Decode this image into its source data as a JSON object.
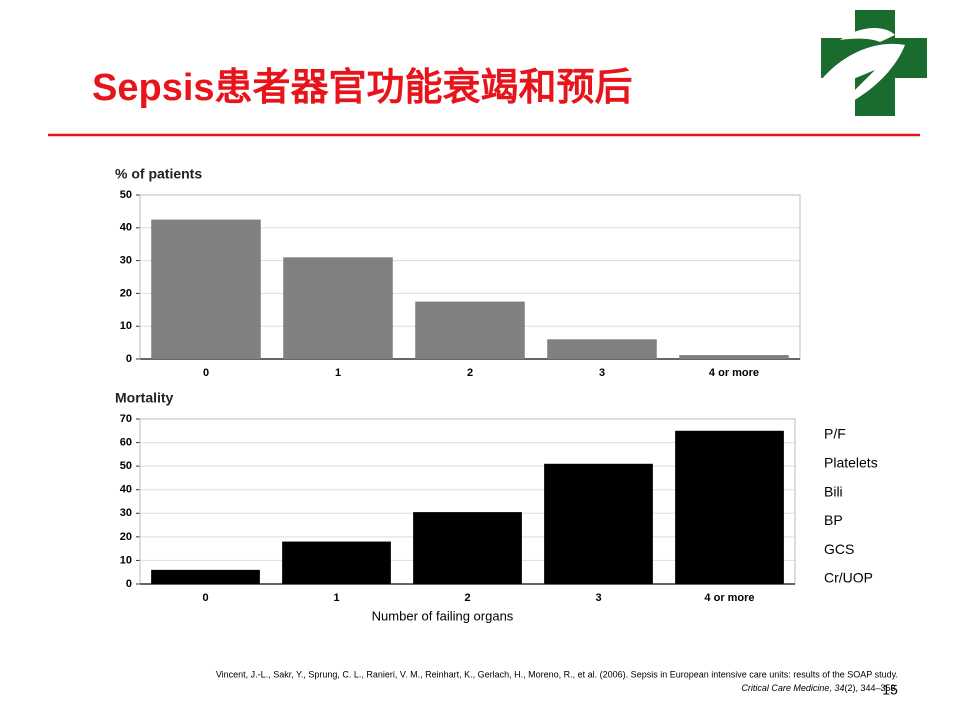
{
  "slide": {
    "title": "Sepsis患者器官功能衰竭和预后",
    "side_list": [
      "P/F",
      "Platelets",
      "Bili",
      "BP",
      "GCS",
      "Cr/UOP"
    ],
    "citation": [
      "Vincent, J.-L., Sakr, Y., Sprung, C. L., Ranieri, V. M., Reinhart, K., Gerlach, H., Moreno, R., et al. (2006). Sepsis in European intensive care units: results of the SOAP study.",
      "Critical Care Medicine, 34",
      "(2), 344–353."
    ],
    "page_number": "15"
  },
  "chart_data": [
    {
      "type": "bar",
      "title": "% of patients",
      "categories": [
        "0",
        "1",
        "2",
        "3",
        "4 or more"
      ],
      "values": [
        42.5,
        31,
        17.5,
        6,
        1.2
      ],
      "color": "#808080",
      "ylim": [
        0,
        50
      ],
      "yticks": [
        0,
        10,
        20,
        30,
        40,
        50
      ],
      "grid": true
    },
    {
      "type": "bar",
      "title": "Mortality",
      "categories": [
        "0",
        "1",
        "2",
        "3",
        "4 or more"
      ],
      "values": [
        6,
        18,
        30.5,
        51,
        65
      ],
      "color": "#000000",
      "ylim": [
        0,
        70
      ],
      "yticks": [
        0,
        10,
        20,
        30,
        40,
        50,
        60,
        70
      ],
      "grid": true,
      "xlabel": "Number of failing organs"
    }
  ]
}
